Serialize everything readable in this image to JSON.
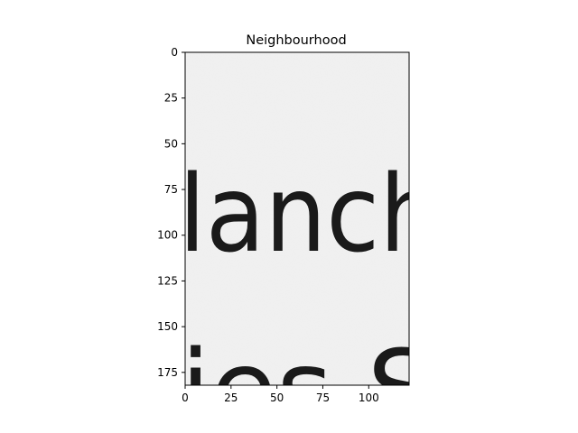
{
  "chart_data": {
    "type": "heatmap",
    "title": "Neighbourhood",
    "xlabel": "",
    "ylabel": "",
    "xlim": [
      0,
      122
    ],
    "ylim": [
      182,
      0
    ],
    "x_ticks": [
      0,
      25,
      50,
      75,
      100
    ],
    "y_ticks": [
      0,
      25,
      50,
      75,
      100,
      125,
      150,
      175
    ],
    "grid": false,
    "image": {
      "description_colormap": "gray",
      "visible_text_fragments": [
        "lanch",
        "ies S"
      ]
    }
  }
}
